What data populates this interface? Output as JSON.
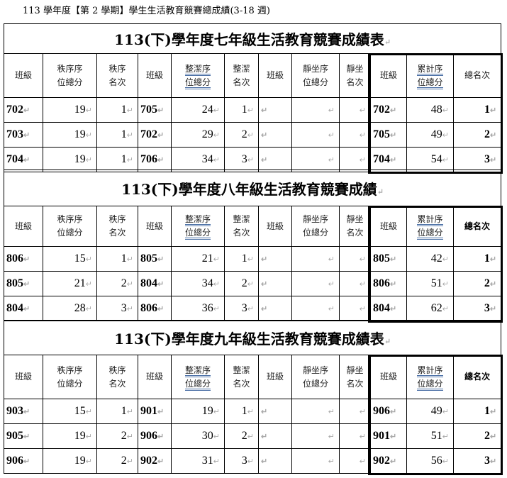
{
  "doc_title": "113 學年度【第 2 學期】學生生活教育競賽總成績(3-18 週)",
  "return_mark": "↵",
  "headers": [
    "班級",
    "秩序序|位總分",
    "秩序|名次",
    "班級",
    "整潔序|位總分",
    "整潔|名次",
    "班級",
    "靜坐序|位總分",
    "靜坐|名次",
    "班級",
    "累計序|位總分",
    "總名次"
  ],
  "sections": [
    {
      "title": "113(下)學年度七年級生活教育競賽成績表",
      "rows": [
        [
          "702",
          "19",
          "1",
          "705",
          "24",
          "1",
          "",
          "",
          "",
          "702",
          "48",
          "1"
        ],
        [
          "703",
          "19",
          "1",
          "702",
          "29",
          "2",
          "",
          "",
          "",
          "705",
          "49",
          "2"
        ],
        [
          "704",
          "19",
          "1",
          "706",
          "34",
          "3",
          "",
          "",
          "",
          "704",
          "54",
          "3"
        ]
      ]
    },
    {
      "title": "113(下)學年度八年級生活教育競賽成績",
      "rows": [
        [
          "806",
          "15",
          "1",
          "805",
          "21",
          "1",
          "",
          "",
          "",
          "805",
          "42",
          "1"
        ],
        [
          "805",
          "21",
          "2",
          "804",
          "34",
          "2",
          "",
          "",
          "",
          "806",
          "51",
          "2"
        ],
        [
          "804",
          "28",
          "3",
          "806",
          "36",
          "3",
          "",
          "",
          "",
          "804",
          "62",
          "3"
        ]
      ]
    },
    {
      "title": "113(下)學年度九年級生活教育競賽成績表",
      "rows": [
        [
          "903",
          "15",
          "1",
          "901",
          "19",
          "1",
          "",
          "",
          "",
          "906",
          "49",
          "1"
        ],
        [
          "905",
          "19",
          "2",
          "906",
          "30",
          "2",
          "",
          "",
          "",
          "901",
          "51",
          "2"
        ],
        [
          "906",
          "19",
          "2",
          "902",
          "31",
          "3",
          "",
          "",
          "",
          "902",
          "56",
          "3"
        ]
      ]
    }
  ]
}
